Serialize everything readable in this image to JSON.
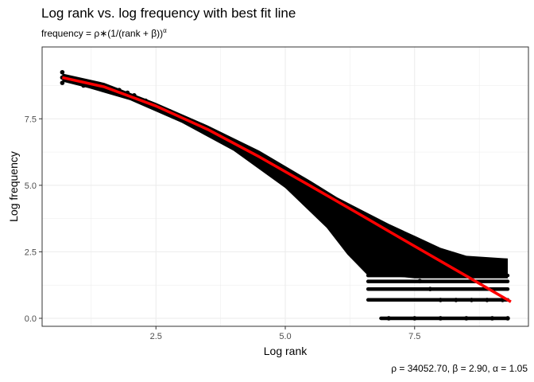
{
  "chart_data": {
    "type": "scatter",
    "title": "Log rank vs. log frequency with best fit line",
    "subtitle": "frequency = ρ∗(1/(rank + β))",
    "subtitle_exponent": "α",
    "caption": "ρ = 34052.70, β = 2.90, α = 1.05",
    "xlabel": "Log rank",
    "ylabel": "Log frequency",
    "xlim": [
      0.3,
      9.7
    ],
    "ylim": [
      -0.3,
      10.2
    ],
    "x_ticks": [
      2.5,
      5.0,
      7.5
    ],
    "y_ticks": [
      0.0,
      2.5,
      5.0,
      7.5
    ],
    "x_tick_labels": [
      "2.5",
      "5.0",
      "7.5"
    ],
    "y_tick_labels": [
      "0.0",
      "2.5",
      "5.0",
      "7.5"
    ],
    "grid": true,
    "colors": {
      "points": "#000000",
      "fit_line": "#ff0000",
      "grid": "#ebebeb",
      "panel_border": "#333333"
    },
    "series": [
      {
        "type": "scatter",
        "points": [
          [
            0.69,
            9.25
          ],
          [
            0.69,
            9.05
          ],
          [
            0.69,
            8.85
          ],
          [
            1.1,
            8.9
          ],
          [
            1.1,
            8.75
          ],
          [
            1.39,
            8.8
          ],
          [
            1.61,
            8.65
          ],
          [
            1.79,
            8.58
          ],
          [
            1.95,
            8.48
          ],
          [
            2.08,
            8.38
          ],
          [
            2.2,
            8.22
          ],
          [
            2.3,
            8.18
          ],
          [
            2.48,
            7.98
          ],
          [
            2.64,
            7.88
          ],
          [
            2.77,
            7.78
          ],
          [
            3.0,
            7.55
          ],
          [
            3.22,
            7.33
          ],
          [
            3.4,
            7.12
          ],
          [
            3.61,
            6.92
          ],
          [
            3.81,
            6.7
          ],
          [
            4.0,
            6.5
          ],
          [
            4.2,
            6.28
          ],
          [
            4.38,
            6.08
          ],
          [
            4.61,
            5.82
          ],
          [
            4.8,
            5.58
          ],
          [
            5.01,
            5.3
          ],
          [
            5.2,
            5.02
          ],
          [
            5.4,
            4.78
          ],
          [
            5.6,
            4.48
          ],
          [
            5.8,
            4.18
          ],
          [
            6.0,
            3.88
          ],
          [
            6.2,
            3.52
          ],
          [
            6.4,
            3.18
          ],
          [
            6.6,
            2.82
          ],
          [
            6.8,
            2.5
          ],
          [
            7.0,
            2.2
          ],
          [
            7.2,
            1.95
          ],
          [
            7.4,
            1.7
          ],
          [
            7.6,
            1.4
          ],
          [
            7.8,
            1.1
          ],
          [
            8.0,
            0.69
          ],
          [
            8.3,
            0.69
          ],
          [
            8.6,
            0.69
          ],
          [
            8.9,
            0.69
          ],
          [
            9.2,
            0.69
          ],
          [
            7.0,
            0.0
          ],
          [
            7.5,
            0.0
          ],
          [
            8.0,
            0.0
          ],
          [
            8.5,
            0.0
          ],
          [
            9.0,
            0.0
          ],
          [
            9.3,
            0.0
          ]
        ]
      },
      {
        "type": "line",
        "name": "best fit",
        "x": [
          0.69,
          1.5,
          2.5,
          3.5,
          4.5,
          5.5,
          6.5,
          7.5,
          8.5,
          9.36
        ],
        "y": [
          9.05,
          8.7,
          7.98,
          7.1,
          6.07,
          4.96,
          3.84,
          2.71,
          1.59,
          0.62
        ]
      }
    ]
  }
}
